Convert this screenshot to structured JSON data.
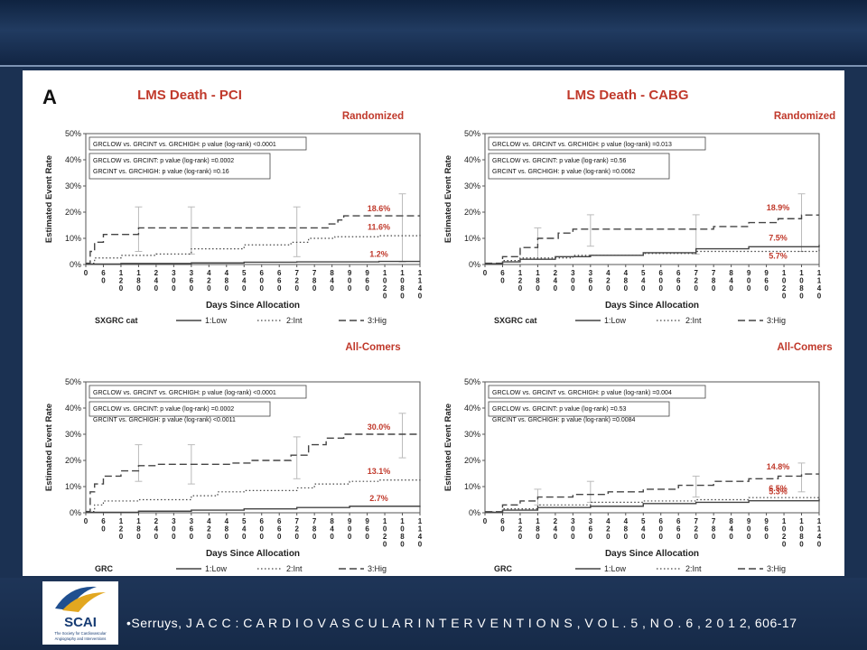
{
  "figure": {
    "letter": "A",
    "footer_citation": "•Serruys, J A C C : C A R D I O V A S C U L A R I N T E R V E N T I O N S , V O L . 5 , N O . 6 , 2 0 1 2, 606-17",
    "logo": {
      "text": "SCAI",
      "subtitle_lines": [
        "The Society for Cardiovascular",
        "Angiography and Interventions"
      ]
    },
    "colors": {
      "background": "#1b3152",
      "title": "#c0392b",
      "series_pct": "#c0392b"
    }
  },
  "chart_data": [
    {
      "type": "line",
      "title": "LMS Death - PCI",
      "subtitle": "Randomized",
      "xlabel": "Days Since Allocation",
      "ylabel": "Estimated Event Rate",
      "ylim": [
        0,
        50
      ],
      "yticks": [
        "0%",
        "10%",
        "20%",
        "30%",
        "40%",
        "50%"
      ],
      "xticks": [
        "0",
        "60",
        "120",
        "180",
        "240",
        "300",
        "360",
        "420",
        "480",
        "540",
        "600",
        "660",
        "720",
        "780",
        "840",
        "900",
        "960",
        "1020",
        "1080",
        "1140"
      ],
      "stats": [
        "GRCLOW vs. GRCINT vs. GRCHIGH: p value (log-rank) <0.0001",
        "GRCLOW vs. GRCINT: p value (log-rank) =0.0002",
        "GRCINT vs. GRCHIGH: p value (log-rank) =0.16"
      ],
      "legend_title": "SXGRC cat",
      "series": [
        {
          "name": "1:Low",
          "style": "solid",
          "end_label": "1.2%",
          "points": [
            [
              0,
              0.2
            ],
            [
              120,
              0.4
            ],
            [
              360,
              0.6
            ],
            [
              540,
              0.9
            ],
            [
              720,
              1.0
            ],
            [
              1000,
              1.2
            ],
            [
              1140,
              1.2
            ]
          ]
        },
        {
          "name": "2:Int",
          "style": "dotted",
          "end_label": "11.6%",
          "points": [
            [
              0,
              0.5
            ],
            [
              30,
              2.5
            ],
            [
              120,
              3.5
            ],
            [
              240,
              4.0
            ],
            [
              360,
              6.0
            ],
            [
              540,
              7.5
            ],
            [
              700,
              8.5
            ],
            [
              760,
              10.0
            ],
            [
              850,
              10.6
            ],
            [
              1000,
              11.0
            ],
            [
              1140,
              11.6
            ]
          ]
        },
        {
          "name": "3:Hig",
          "style": "dashed",
          "end_label": "18.6%",
          "points": [
            [
              0,
              0.5
            ],
            [
              15,
              5.0
            ],
            [
              30,
              8.5
            ],
            [
              60,
              11.5
            ],
            [
              180,
              14.0
            ],
            [
              500,
              14.0
            ],
            [
              800,
              14.0
            ],
            [
              830,
              15.5
            ],
            [
              860,
              17.0
            ],
            [
              880,
              18.6
            ],
            [
              1140,
              18.6
            ]
          ]
        }
      ],
      "error_bars": [
        [
          180,
          5,
          22
        ],
        [
          360,
          4,
          22
        ],
        [
          720,
          3,
          22
        ],
        [
          1080,
          1,
          27
        ]
      ]
    },
    {
      "type": "line",
      "title": "LMS Death - CABG",
      "subtitle": "Randomized",
      "xlabel": "Days Since Allocation",
      "ylabel": "Estimated Event Rate",
      "ylim": [
        0,
        50
      ],
      "yticks": [
        "0%",
        "10%",
        "20%",
        "30%",
        "40%",
        "50%"
      ],
      "xticks": [
        "0",
        "60",
        "120",
        "180",
        "240",
        "300",
        "360",
        "420",
        "480",
        "540",
        "600",
        "660",
        "720",
        "780",
        "840",
        "900",
        "960",
        "1020",
        "1080",
        "1140"
      ],
      "stats": [
        "GRCLOW vs. GRCINT vs. GRCHIGH: p value (log-rank) =0.013",
        "GRCLOW vs. GRCINT: p value (log-rank) =0.56",
        "GRCINT vs. GRCHIGH: p value (log-rank) =0.0062"
      ],
      "legend_title": "SXGRC cat",
      "series": [
        {
          "name": "1:Low",
          "style": "solid",
          "end_label": "7.5%",
          "points": [
            [
              0,
              0.3
            ],
            [
              60,
              1.0
            ],
            [
              120,
              2.0
            ],
            [
              240,
              3.0
            ],
            [
              360,
              3.5
            ],
            [
              540,
              4.5
            ],
            [
              720,
              6.0
            ],
            [
              900,
              6.8
            ],
            [
              1140,
              7.5
            ]
          ]
        },
        {
          "name": "2:Int",
          "style": "dotted",
          "end_label": "5.7%",
          "points": [
            [
              0,
              0.3
            ],
            [
              60,
              1.5
            ],
            [
              120,
              2.5
            ],
            [
              300,
              3.5
            ],
            [
              540,
              4.2
            ],
            [
              720,
              5.0
            ],
            [
              1140,
              5.7
            ]
          ]
        },
        {
          "name": "3:Hig",
          "style": "dashed",
          "end_label": "18.9%",
          "points": [
            [
              0,
              0.5
            ],
            [
              60,
              3.0
            ],
            [
              120,
              6.5
            ],
            [
              180,
              10.0
            ],
            [
              250,
              12.0
            ],
            [
              300,
              13.5
            ],
            [
              720,
              13.5
            ],
            [
              780,
              14.5
            ],
            [
              900,
              16.0
            ],
            [
              1000,
              17.5
            ],
            [
              1080,
              18.9
            ],
            [
              1140,
              18.9
            ]
          ]
        }
      ],
      "error_bars": [
        [
          180,
          2,
          14
        ],
        [
          360,
          7,
          19
        ],
        [
          720,
          4,
          19
        ],
        [
          1080,
          5,
          27
        ]
      ]
    },
    {
      "type": "line",
      "title": "",
      "subtitle": "All-Comers",
      "xlabel": "Days Since Allocation",
      "ylabel": "Estimated Event Rate",
      "ylim": [
        0,
        50
      ],
      "yticks": [
        "0%",
        "10%",
        "20%",
        "30%",
        "40%",
        "50%"
      ],
      "xticks": [
        "0",
        "60",
        "120",
        "180",
        "240",
        "300",
        "360",
        "420",
        "480",
        "540",
        "600",
        "660",
        "720",
        "780",
        "840",
        "900",
        "960",
        "1020",
        "1080",
        "1140"
      ],
      "stats": [
        "GRCLOW vs. GRCINT vs. GRCHIGH: p value (log-rank) <0.0001",
        "GRCLOW vs. GRCINT: p value (log-rank) =0.0002",
        "GRCINT vs. GRCHIGH: p value (log-rank) <0.0011"
      ],
      "legend_title": "GRC",
      "series": [
        {
          "name": "1:Low",
          "style": "solid",
          "end_label": "2.7%",
          "points": [
            [
              0,
              0.2
            ],
            [
              180,
              0.6
            ],
            [
              360,
              1.0
            ],
            [
              540,
              1.5
            ],
            [
              720,
              2.0
            ],
            [
              900,
              2.5
            ],
            [
              1140,
              2.7
            ]
          ]
        },
        {
          "name": "2:Int",
          "style": "dotted",
          "end_label": "13.1%",
          "points": [
            [
              0,
              0.5
            ],
            [
              30,
              3.0
            ],
            [
              60,
              4.5
            ],
            [
              180,
              5.0
            ],
            [
              360,
              6.5
            ],
            [
              450,
              8.0
            ],
            [
              540,
              8.5
            ],
            [
              720,
              9.5
            ],
            [
              780,
              11.0
            ],
            [
              900,
              12.0
            ],
            [
              1000,
              12.5
            ],
            [
              1140,
              13.1
            ]
          ]
        },
        {
          "name": "3:Hig",
          "style": "dashed",
          "end_label": "30.0%",
          "points": [
            [
              0,
              0.5
            ],
            [
              15,
              8.0
            ],
            [
              30,
              11.0
            ],
            [
              60,
              14.0
            ],
            [
              120,
              16.0
            ],
            [
              180,
              18.0
            ],
            [
              240,
              18.5
            ],
            [
              500,
              19.0
            ],
            [
              560,
              20.0
            ],
            [
              700,
              22.0
            ],
            [
              760,
              26.0
            ],
            [
              820,
              28.5
            ],
            [
              880,
              30.0
            ],
            [
              1140,
              30.0
            ]
          ]
        }
      ],
      "error_bars": [
        [
          180,
          12,
          26
        ],
        [
          360,
          11,
          26
        ],
        [
          720,
          13,
          29
        ],
        [
          1080,
          21,
          38
        ]
      ]
    },
    {
      "type": "line",
      "title": "",
      "subtitle": "All-Comers",
      "xlabel": "Days Since Allocation",
      "ylabel": "Estimated Event Rate",
      "ylim": [
        0,
        50
      ],
      "yticks": [
        "0%",
        "10%",
        "20%",
        "30%",
        "40%",
        "50%"
      ],
      "xticks": [
        "0",
        "60",
        "120",
        "180",
        "240",
        "300",
        "360",
        "420",
        "480",
        "540",
        "600",
        "660",
        "720",
        "780",
        "840",
        "900",
        "960",
        "1020",
        "1080",
        "1140"
      ],
      "stats": [
        "GRCLOW vs. GRCINT vs. GRCHIGH: p value (log-rank) =0.004",
        "GRCLOW vs. GRCINT: p value (log-rank) =0.53",
        "GRCINT vs. GRCHIGH: p value (log-rank) =0.0084"
      ],
      "legend_title": "GRC",
      "series": [
        {
          "name": "1:Low",
          "style": "solid",
          "end_label": "5.3%",
          "points": [
            [
              0,
              0.2
            ],
            [
              60,
              1.0
            ],
            [
              180,
              2.0
            ],
            [
              360,
              2.5
            ],
            [
              540,
              3.5
            ],
            [
              720,
              4.0
            ],
            [
              900,
              4.6
            ],
            [
              1140,
              5.3
            ]
          ]
        },
        {
          "name": "2:Int",
          "style": "dotted",
          "end_label": "6.5%",
          "points": [
            [
              0,
              0.3
            ],
            [
              60,
              1.5
            ],
            [
              180,
              3.0
            ],
            [
              360,
              4.0
            ],
            [
              540,
              4.5
            ],
            [
              720,
              5.0
            ],
            [
              900,
              5.8
            ],
            [
              1140,
              6.5
            ]
          ]
        },
        {
          "name": "3:Hig",
          "style": "dashed",
          "end_label": "14.8%",
          "points": [
            [
              0,
              0.4
            ],
            [
              60,
              3.0
            ],
            [
              120,
              4.5
            ],
            [
              180,
              6.0
            ],
            [
              300,
              7.0
            ],
            [
              420,
              8.0
            ],
            [
              540,
              9.0
            ],
            [
              660,
              10.5
            ],
            [
              780,
              12.0
            ],
            [
              900,
              13.0
            ],
            [
              1000,
              14.0
            ],
            [
              1080,
              14.8
            ],
            [
              1140,
              14.8
            ]
          ]
        }
      ],
      "error_bars": [
        [
          180,
          3,
          9
        ],
        [
          360,
          4,
          12
        ],
        [
          720,
          6,
          14
        ],
        [
          1080,
          8,
          19
        ]
      ]
    }
  ]
}
